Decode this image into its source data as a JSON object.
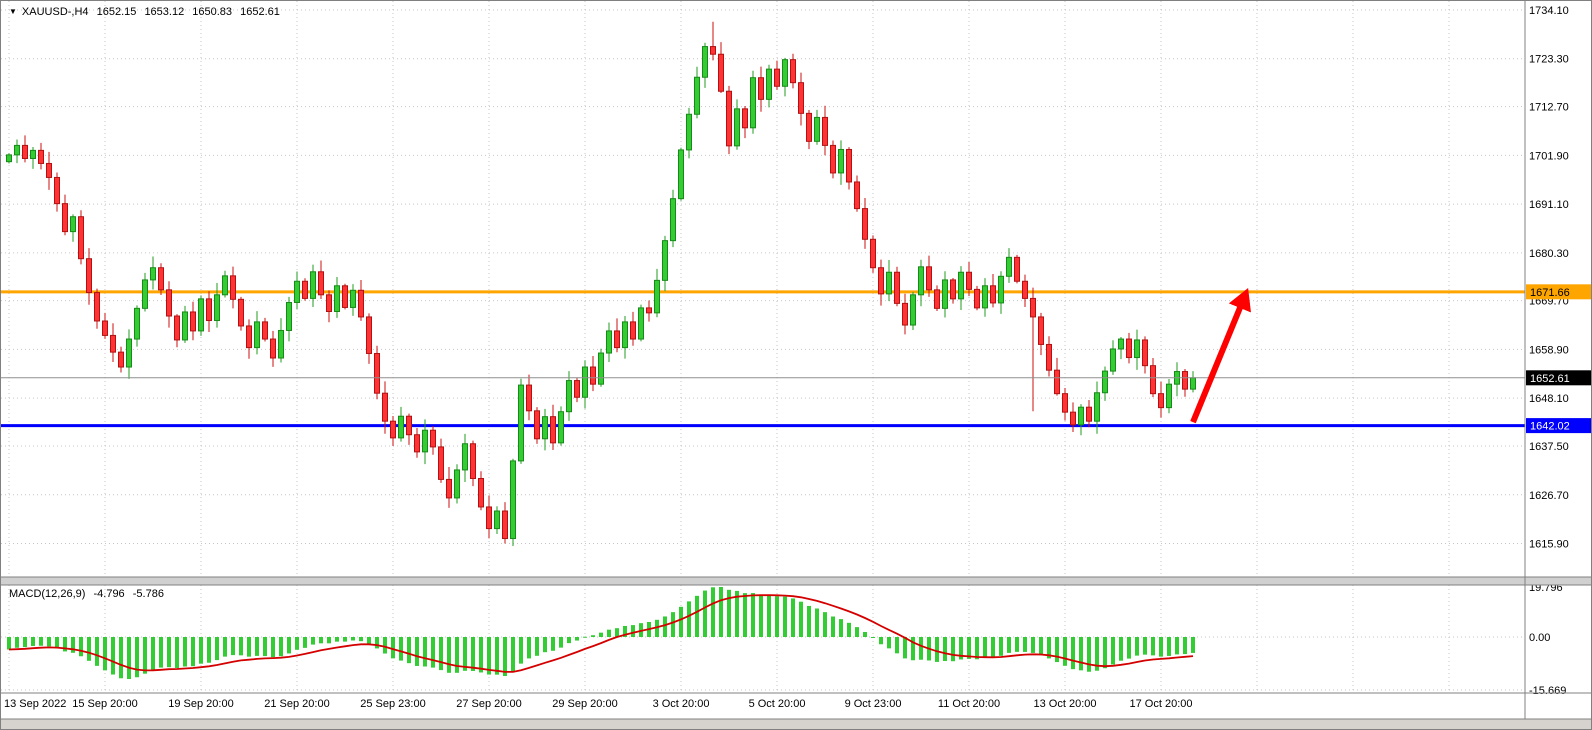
{
  "header": {
    "menu_icon": "▼",
    "symbol_period": "XAUUSD-,H4",
    "open": "1652.15",
    "high": "1653.12",
    "low": "1650.83",
    "close": "1652.61"
  },
  "macd_panel": {
    "title": "MACD(12,26,9)",
    "main_value": "-4.796",
    "signal_value": "-5.786"
  },
  "annotations": [
    {
      "type": "arrow",
      "color": "#FF0000",
      "width": 6,
      "from": {
        "x": 1192,
        "price": 1642.8
      },
      "to": {
        "x": 1243,
        "price": 1670.3
      }
    }
  ],
  "colors": {
    "background": "#FFFFFF",
    "grid": "#C6C6C6",
    "candle_up": "#33CC33",
    "candle_up_border": "#178A17",
    "candle_down": "#FF3333",
    "candle_down_border": "#B01212",
    "wick_up": "#1F9E1F",
    "wick_down": "#CC1111",
    "bid_line": "#8F8F8F",
    "axis_text": "#000000",
    "pane_divider": "#D0D0D0",
    "window_chrome": "#D6D3CE"
  },
  "chart_data": [
    {
      "type": "candlestick",
      "symbol": "XAUUSD",
      "timeframe": "H4",
      "ylim": [
        1615.9,
        1734.1
      ],
      "y_tick_labels": [
        "1734.10",
        "1723.30",
        "1712.70",
        "1701.90",
        "1691.10",
        "1680.30",
        "1669.70",
        "1658.90",
        "1648.10",
        "1637.50",
        "1626.70",
        "1615.90"
      ],
      "x_tick_labels": [
        "13 Sep 2022",
        "15 Sep 20:00",
        "19 Sep 20:00",
        "21 Sep 20:00",
        "25 Sep 23:00",
        "27 Sep 20:00",
        "29 Sep 20:00",
        "3 Oct 20:00",
        "5 Oct 20:00",
        "9 Oct 23:00",
        "11 Oct 20:00",
        "13 Oct 20:00",
        "17 Oct 20:00"
      ],
      "bars_per_tick": 12,
      "first_open": 1700.5,
      "closes": [
        1702.0,
        1704.1,
        1701.2,
        1703.0,
        1700.1,
        1697.0,
        1691.2,
        1685.0,
        1688.3,
        1679.0,
        1671.5,
        1665.2,
        1662.0,
        1658.3,
        1655.0,
        1661.2,
        1668.0,
        1674.3,
        1677.0,
        1672.1,
        1666.3,
        1661.0,
        1667.2,
        1663.0,
        1670.1,
        1665.3,
        1671.0,
        1675.2,
        1670.0,
        1664.1,
        1659.3,
        1665.0,
        1661.2,
        1657.0,
        1663.1,
        1669.3,
        1674.0,
        1670.2,
        1676.1,
        1671.0,
        1667.3,
        1673.0,
        1668.2,
        1672.0,
        1666.1,
        1658.0,
        1649.2,
        1643.0,
        1639.3,
        1644.1,
        1640.0,
        1636.2,
        1641.0,
        1637.3,
        1630.1,
        1626.0,
        1632.2,
        1638.0,
        1630.3,
        1624.0,
        1619.2,
        1623.1,
        1617.0,
        1634.2,
        1651.0,
        1645.3,
        1639.1,
        1644.0,
        1638.2,
        1645.1,
        1652.0,
        1648.3,
        1655.0,
        1651.2,
        1658.1,
        1663.0,
        1659.3,
        1665.0,
        1661.2,
        1668.1,
        1667.0,
        1674.2,
        1683.0,
        1692.3,
        1703.1,
        1711.0,
        1719.2,
        1726.0,
        1724.3,
        1716.1,
        1704.0,
        1712.2,
        1708.0,
        1719.1,
        1714.3,
        1721.0,
        1717.2,
        1723.1,
        1718.0,
        1711.2,
        1705.0,
        1710.3,
        1704.1,
        1698.0,
        1703.2,
        1696.0,
        1690.1,
        1683.3,
        1677.0,
        1671.2,
        1676.0,
        1669.1,
        1664.3,
        1671.0,
        1677.2,
        1672.1,
        1668.0,
        1674.3,
        1670.1,
        1676.0,
        1672.2,
        1668.1,
        1673.0,
        1669.2,
        1675.1,
        1679.3,
        1674.0,
        1670.2,
        1666.1,
        1660.0,
        1654.3,
        1649.1,
        1645.0,
        1642.2,
        1646.1,
        1643.0,
        1649.3,
        1654.1,
        1659.0,
        1661.2,
        1657.1,
        1661.0,
        1655.3,
        1649.1,
        1646.0,
        1651.2,
        1654.0,
        1650.1,
        1652.61
      ],
      "wick_overrides": {
        "62": {
          "low": 1615.9
        },
        "88": {
          "high": 1731.5
        },
        "128": {
          "low": 1645.2
        },
        "133": {
          "low": 1640.6
        }
      },
      "horizontal_lines": [
        {
          "name": "resistance",
          "label": "1671.66",
          "price": 1671.66,
          "color": "#FFA500",
          "text_color": "#000000",
          "width": 3
        },
        {
          "name": "support",
          "label": "1642.02",
          "price": 1642.02,
          "color": "#0000FF",
          "text_color": "#FFFFFF",
          "width": 3
        }
      ],
      "last_price": {
        "label": "1652.61",
        "price": 1652.61,
        "bg": "#000000",
        "text": "#FFFFFF"
      }
    },
    {
      "type": "macd",
      "params": [
        12,
        26,
        9
      ],
      "source": "closes of chart_data[0]",
      "ylim": [
        -15.669,
        19.796
      ],
      "axis_tick_labels": [
        "19.796",
        "0.00",
        "-15.669"
      ],
      "last_main": -4.796,
      "last_signal": -5.786,
      "histogram_color": "#32CD32",
      "signal_color": "#D40000"
    }
  ]
}
